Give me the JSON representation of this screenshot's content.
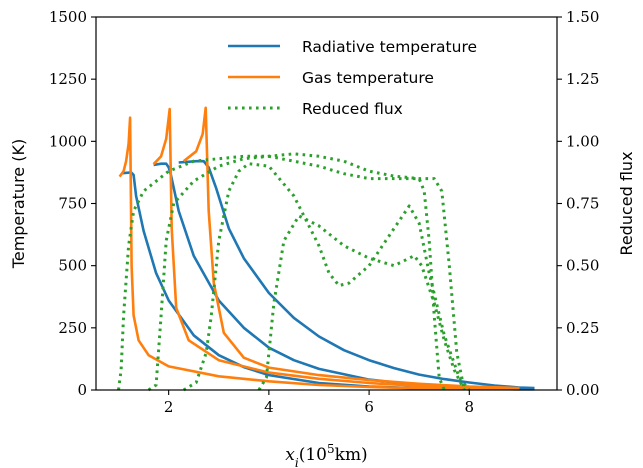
{
  "chart_data": {
    "type": "line",
    "xlabel": {
      "var": "x",
      "sub": "i",
      "rest": "(10",
      "sup": "5",
      "unit": "km)"
    },
    "ylabel": "Temperature (K)",
    "y2label": "Reduced flux",
    "xlim": [
      0.55,
      9.75
    ],
    "ylim": [
      0,
      1500
    ],
    "y2lim": [
      0,
      1.5
    ],
    "xticks": [
      2,
      4,
      6,
      8
    ],
    "xtick_labels": [
      "2",
      "4",
      "6",
      "8"
    ],
    "yticks": [
      0,
      250,
      500,
      750,
      1000,
      1250,
      1500
    ],
    "ytick_labels": [
      "0",
      "250",
      "500",
      "750",
      "1000",
      "1250",
      "1500"
    ],
    "y2ticks": [
      0,
      0.25,
      0.5,
      0.75,
      1.0,
      1.25,
      1.5
    ],
    "y2tick_labels": [
      "0.00",
      "0.25",
      "0.50",
      "0.75",
      "1.00",
      "1.25",
      "1.50"
    ],
    "grid": false,
    "legend_position": "top-right",
    "colors": {
      "radiative": "#1f77b4",
      "gas": "#ff7f0e",
      "flux": "#2ca02c"
    },
    "series": [
      {
        "name": "Radiative temperature",
        "axis": "left",
        "style": "solid",
        "color": "#1f77b4",
        "lines": [
          [
            [
              1.07,
              872
            ],
            [
              1.25,
              875
            ],
            [
              1.3,
              865
            ],
            [
              1.35,
              780
            ],
            [
              1.5,
              640
            ],
            [
              1.75,
              470
            ],
            [
              2.0,
              360
            ],
            [
              2.5,
              220
            ],
            [
              3.0,
              140
            ],
            [
              3.5,
              92
            ],
            [
              4.0,
              60
            ],
            [
              5.0,
              28
            ],
            [
              6.0,
              14
            ],
            [
              7.0,
              7
            ],
            [
              8.0,
              4
            ],
            [
              9.0,
              3
            ],
            [
              9.3,
              3
            ]
          ],
          [
            [
              1.7,
              905
            ],
            [
              1.85,
              910
            ],
            [
              1.95,
              910
            ],
            [
              2.0,
              895
            ],
            [
              2.05,
              860
            ],
            [
              2.2,
              720
            ],
            [
              2.5,
              540
            ],
            [
              3.0,
              360
            ],
            [
              3.5,
              250
            ],
            [
              4.0,
              170
            ],
            [
              4.5,
              120
            ],
            [
              5.0,
              85
            ],
            [
              6.0,
              42
            ],
            [
              7.0,
              20
            ],
            [
              8.0,
              9
            ],
            [
              9.0,
              5
            ],
            [
              9.3,
              4
            ]
          ],
          [
            [
              2.2,
              915
            ],
            [
              2.55,
              920
            ],
            [
              2.7,
              920
            ],
            [
              2.8,
              895
            ],
            [
              2.95,
              810
            ],
            [
              3.2,
              650
            ],
            [
              3.5,
              530
            ],
            [
              4.0,
              390
            ],
            [
              4.5,
              290
            ],
            [
              5.0,
              215
            ],
            [
              5.5,
              160
            ],
            [
              6.0,
              120
            ],
            [
              6.5,
              88
            ],
            [
              7.0,
              62
            ],
            [
              7.5,
              44
            ],
            [
              8.0,
              30
            ],
            [
              8.5,
              18
            ],
            [
              9.0,
              10
            ],
            [
              9.3,
              8
            ]
          ]
        ]
      },
      {
        "name": "Gas temperature",
        "axis": "left",
        "style": "solid",
        "color": "#ff7f0e",
        "lines": [
          [
            [
              1.02,
              858
            ],
            [
              1.1,
              880
            ],
            [
              1.15,
              920
            ],
            [
              1.2,
              990
            ],
            [
              1.23,
              1095
            ],
            [
              1.26,
              500
            ],
            [
              1.3,
              300
            ],
            [
              1.4,
              200
            ],
            [
              1.6,
              140
            ],
            [
              2.0,
              95
            ],
            [
              3.0,
              55
            ],
            [
              4.0,
              35
            ],
            [
              5.0,
              20
            ],
            [
              6.0,
              12
            ],
            [
              7.0,
              7
            ],
            [
              8.0,
              4
            ],
            [
              9.0,
              3
            ]
          ],
          [
            [
              1.7,
              908
            ],
            [
              1.85,
              940
            ],
            [
              1.95,
              1010
            ],
            [
              2.02,
              1130
            ],
            [
              2.06,
              650
            ],
            [
              2.15,
              330
            ],
            [
              2.4,
              200
            ],
            [
              3.0,
              120
            ],
            [
              4.0,
              70
            ],
            [
              5.0,
              45
            ],
            [
              6.0,
              28
            ],
            [
              7.0,
              16
            ],
            [
              8.0,
              9
            ],
            [
              9.0,
              5
            ]
          ],
          [
            [
              2.3,
              920
            ],
            [
              2.55,
              960
            ],
            [
              2.68,
              1030
            ],
            [
              2.74,
              1135
            ],
            [
              2.8,
              720
            ],
            [
              2.9,
              430
            ],
            [
              3.1,
              230
            ],
            [
              3.5,
              130
            ],
            [
              4.0,
              90
            ],
            [
              5.0,
              60
            ],
            [
              6.0,
              40
            ],
            [
              7.0,
              25
            ],
            [
              8.0,
              14
            ],
            [
              9.0,
              8
            ]
          ]
        ]
      },
      {
        "name": "Reduced flux",
        "axis": "right",
        "style": "dotted",
        "color": "#2ca02c",
        "lines": [
          [
            [
              1.0,
              0.0
            ],
            [
              1.05,
              0.08
            ],
            [
              1.1,
              0.3
            ],
            [
              1.2,
              0.58
            ],
            [
              1.3,
              0.72
            ],
            [
              1.5,
              0.8
            ],
            [
              2.0,
              0.88
            ],
            [
              2.5,
              0.92
            ],
            [
              3.0,
              0.93
            ],
            [
              3.5,
              0.94
            ],
            [
              4.0,
              0.94
            ],
            [
              4.5,
              0.92
            ],
            [
              5.0,
              0.9
            ],
            [
              5.5,
              0.87
            ],
            [
              6.0,
              0.85
            ],
            [
              6.5,
              0.85
            ],
            [
              7.0,
              0.85
            ],
            [
              7.1,
              0.8
            ],
            [
              7.2,
              0.6
            ],
            [
              7.3,
              0.3
            ],
            [
              7.4,
              0.05
            ],
            [
              7.5,
              0.0
            ]
          ],
          [
            [
              1.6,
              0.0
            ],
            [
              1.75,
              0.02
            ],
            [
              1.85,
              0.3
            ],
            [
              1.95,
              0.6
            ],
            [
              2.1,
              0.75
            ],
            [
              2.5,
              0.84
            ],
            [
              3.0,
              0.9
            ],
            [
              3.5,
              0.93
            ],
            [
              4.0,
              0.94
            ],
            [
              4.5,
              0.95
            ],
            [
              5.0,
              0.94
            ],
            [
              5.5,
              0.92
            ],
            [
              6.0,
              0.88
            ],
            [
              6.5,
              0.86
            ],
            [
              7.0,
              0.85
            ],
            [
              7.3,
              0.85
            ],
            [
              7.45,
              0.8
            ],
            [
              7.6,
              0.5
            ],
            [
              7.75,
              0.15
            ],
            [
              7.9,
              0.0
            ]
          ],
          [
            [
              2.3,
              0.0
            ],
            [
              2.55,
              0.03
            ],
            [
              2.75,
              0.15
            ],
            [
              2.85,
              0.3
            ],
            [
              3.0,
              0.6
            ],
            [
              3.2,
              0.8
            ],
            [
              3.4,
              0.88
            ],
            [
              3.6,
              0.91
            ],
            [
              4.0,
              0.9
            ],
            [
              4.5,
              0.78
            ],
            [
              5.0,
              0.58
            ],
            [
              5.2,
              0.47
            ],
            [
              5.4,
              0.42
            ],
            [
              5.6,
              0.43
            ],
            [
              6.0,
              0.5
            ],
            [
              6.4,
              0.62
            ],
            [
              6.8,
              0.74
            ],
            [
              7.0,
              0.67
            ],
            [
              7.2,
              0.47
            ],
            [
              7.5,
              0.22
            ],
            [
              7.8,
              0.05
            ],
            [
              8.0,
              0.0
            ]
          ],
          [
            [
              3.8,
              0.0
            ],
            [
              3.95,
              0.05
            ],
            [
              4.1,
              0.35
            ],
            [
              4.3,
              0.6
            ],
            [
              4.6,
              0.7
            ],
            [
              5.0,
              0.66
            ],
            [
              5.5,
              0.58
            ],
            [
              6.0,
              0.53
            ],
            [
              6.5,
              0.5
            ],
            [
              6.8,
              0.53
            ],
            [
              6.9,
              0.54
            ],
            [
              7.05,
              0.5
            ],
            [
              7.3,
              0.35
            ],
            [
              7.5,
              0.2
            ],
            [
              7.7,
              0.08
            ],
            [
              7.9,
              0.0
            ]
          ]
        ]
      }
    ]
  }
}
